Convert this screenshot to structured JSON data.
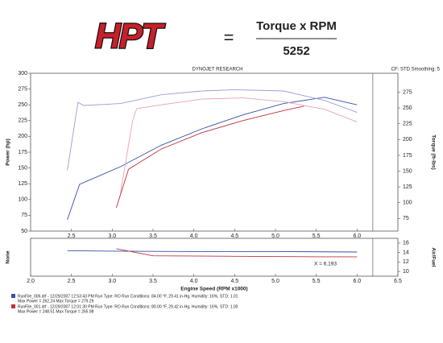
{
  "header": {
    "logo": "HPT",
    "equals": "=",
    "numerator": "Torque x RPM",
    "denominator": "5252"
  },
  "chart_data": [
    {
      "type": "line",
      "title": "DYNOJET RESEARCH",
      "subtitle": "CF: STD  Smoothing: 5",
      "ylabel": "Power (hp)",
      "y2label": "Torque (ft-lbs)",
      "xlim": [
        2,
        6.5
      ],
      "xticks": [
        2.5,
        {
          "value": 3,
          "label": "3.0"
        },
        3.5,
        {
          "value": 4,
          "label": "4.0"
        },
        4.5,
        {
          "value": 5,
          "label": "5.0"
        },
        5.5,
        {
          "value": 6,
          "label": "6.0"
        }
      ],
      "ylim": [
        50,
        300
      ],
      "yticks": [
        50,
        75,
        100,
        125,
        150,
        175,
        200,
        225,
        250,
        275,
        300
      ],
      "y2lim": [
        55,
        305
      ],
      "y2ticks": [
        75,
        100,
        125,
        150,
        175,
        200,
        225,
        250,
        275
      ],
      "series": [
        {
          "color": "#3450a8",
          "x": [
            2.45,
            2.6,
            3.1,
            3.6,
            4.1,
            4.6,
            5.1,
            5.6,
            6.0
          ],
          "values": [
            68,
            124,
            152,
            186,
            212,
            234,
            252,
            262,
            250
          ]
        },
        {
          "color": "#9d9bd8",
          "axis": "y2",
          "x": [
            2.45,
            2.58,
            2.65,
            3.1,
            3.6,
            4.1,
            4.5,
            5.1,
            5.6,
            6.0
          ],
          "values": [
            151,
            259,
            254,
            257,
            271,
            277,
            279,
            277,
            262,
            243
          ]
        },
        {
          "color": "#c0303e",
          "x": [
            3.05,
            3.2,
            3.6,
            4.1,
            4.6,
            5.1,
            5.35
          ],
          "values": [
            87,
            148,
            180,
            206,
            225,
            241,
            248
          ]
        },
        {
          "color": "#e8a2b4",
          "axis": "y2",
          "x": [
            3.1,
            3.25,
            3.3,
            3.6,
            4.1,
            4.6,
            5.1,
            5.6,
            6.0
          ],
          "values": [
            115,
            230,
            249,
            255,
            264,
            266,
            260,
            248,
            228
          ]
        }
      ]
    },
    {
      "type": "line",
      "xlabel": "Engine Speed (RPM x1000)",
      "ylabel": "None",
      "y2label": "Air/Fuel",
      "xlim": [
        2,
        6.5
      ],
      "xticks": [
        {
          "value": 2,
          "label": "2.0"
        },
        2.5,
        {
          "value": 3,
          "label": "3.0"
        },
        3.5,
        {
          "value": 4,
          "label": "4.0"
        },
        4.5,
        {
          "value": 5,
          "label": "5.0"
        },
        5.5,
        {
          "value": 6,
          "label": "6.0"
        },
        6.5
      ],
      "y2lim": [
        9,
        17
      ],
      "y2ticks": [
        10,
        12,
        14,
        16
      ],
      "annotations": [
        {
          "text": "X = 6.193",
          "x": 6.193
        }
      ],
      "series": [
        {
          "color": "#3450a8",
          "axis": "y2",
          "x": [
            2.45,
            3.0,
            4.0,
            5.0,
            6.0
          ],
          "values": [
            14.4,
            14.3,
            14.2,
            14.2,
            14.1
          ]
        },
        {
          "color": "#c0303e",
          "axis": "y2",
          "x": [
            3.05,
            3.5,
            4.5,
            5.5,
            6.0
          ],
          "values": [
            14.8,
            13.3,
            13.2,
            13.1,
            13.1
          ]
        }
      ]
    }
  ],
  "runs": [
    {
      "color": "#3450a8",
      "file": "RunFile_006.drf - 12/29/2007 12:53:43 PM  Run Type: RO  Run Conditions: 84.00 °F, 29.41 in-Hg, Humidity: 16%, STD: 1.01",
      "max": "Max Power = 262.24  Max Torque = 279.29"
    },
    {
      "color": "#c0303e",
      "file": "RunFile_001.drf - 12/29/2007 12:01:30 PM  Run Type: RO  Run Conditions: 80.00 °F, 29.42 in-Hg, Humidity: 16%, STD: 1.00",
      "max": "Max Power = 248.51  Max Torque = 265.98"
    }
  ]
}
